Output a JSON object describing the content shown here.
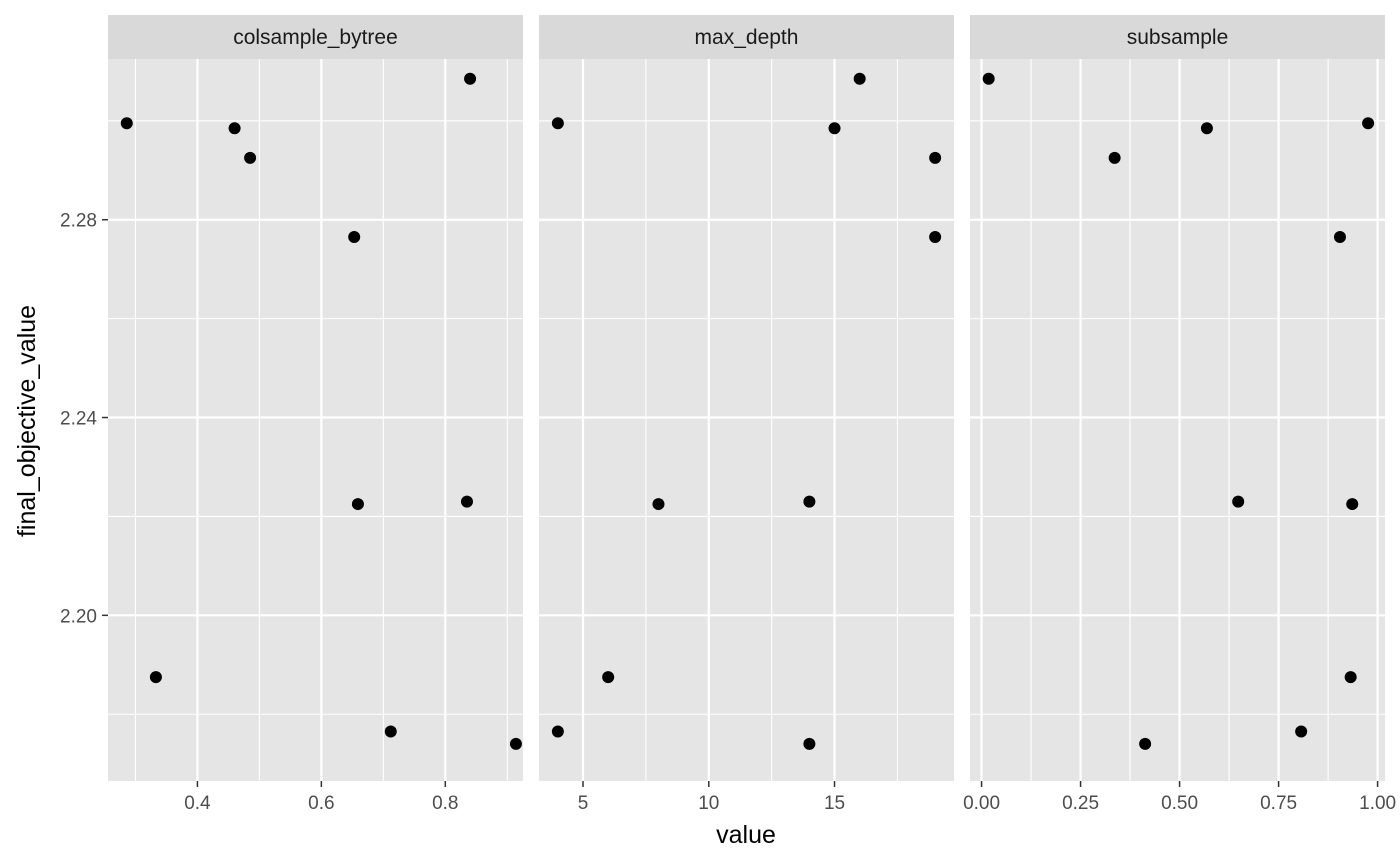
{
  "chart_data": {
    "type": "scatter",
    "facet_layout": "columns",
    "xlabel": "value",
    "ylabel": "final_objective_value",
    "y_range": [
      2.1665,
      2.3125
    ],
    "y_ticks": [
      2.2,
      2.24,
      2.28
    ],
    "y_tick_labels": [
      "2.20",
      "2.24",
      "2.28"
    ],
    "y_minor_ticks": [
      2.18,
      2.22,
      2.26,
      2.3
    ],
    "grid": true,
    "colors": {
      "panel_background": "#e5e5e5",
      "strip_background": "#d9d9d9",
      "gridline": "#ffffff",
      "point": "#000000"
    },
    "panels": [
      {
        "title": "colsample_bytree",
        "x_range": [
          0.2557,
          0.9254
        ],
        "x_ticks": [
          0.4,
          0.6,
          0.8
        ],
        "x_tick_labels": [
          "0.4",
          "0.6",
          "0.8"
        ],
        "x_minor_ticks": [
          0.3,
          0.5,
          0.7,
          0.9
        ],
        "points": [
          {
            "x": 0.286,
            "y": 2.2995
          },
          {
            "x": 0.333,
            "y": 2.1875
          },
          {
            "x": 0.46,
            "y": 2.2985
          },
          {
            "x": 0.485,
            "y": 2.2925
          },
          {
            "x": 0.653,
            "y": 2.2765
          },
          {
            "x": 0.659,
            "y": 2.2225
          },
          {
            "x": 0.712,
            "y": 2.1765
          },
          {
            "x": 0.835,
            "y": 2.223
          },
          {
            "x": 0.84,
            "y": 2.3085
          },
          {
            "x": 0.914,
            "y": 2.174
          }
        ]
      },
      {
        "title": "max_depth",
        "x_range": [
          3.25,
          19.75
        ],
        "x_ticks": [
          5,
          10,
          15
        ],
        "x_tick_labels": [
          "5",
          "10",
          "15"
        ],
        "x_minor_ticks": [
          7.5,
          12.5,
          17.5
        ],
        "points": [
          {
            "x": 4,
            "y": 2.2995
          },
          {
            "x": 4,
            "y": 2.1765
          },
          {
            "x": 6,
            "y": 2.1875
          },
          {
            "x": 8,
            "y": 2.2225
          },
          {
            "x": 14,
            "y": 2.223
          },
          {
            "x": 14,
            "y": 2.174
          },
          {
            "x": 15,
            "y": 2.2985
          },
          {
            "x": 16,
            "y": 2.3085
          },
          {
            "x": 19,
            "y": 2.2925
          },
          {
            "x": 19,
            "y": 2.2765
          }
        ]
      },
      {
        "title": "subsample",
        "x_range": [
          -0.0292,
          1.0187
        ],
        "x_ticks": [
          0.0,
          0.25,
          0.5,
          0.75,
          1.0
        ],
        "x_tick_labels": [
          "0.00",
          "0.25",
          "0.50",
          "0.75",
          "1.00"
        ],
        "x_minor_ticks": [
          0.125,
          0.375,
          0.625,
          0.875
        ],
        "points": [
          {
            "x": 0.018,
            "y": 2.3085
          },
          {
            "x": 0.336,
            "y": 2.2925
          },
          {
            "x": 0.413,
            "y": 2.174
          },
          {
            "x": 0.569,
            "y": 2.2985
          },
          {
            "x": 0.648,
            "y": 2.223
          },
          {
            "x": 0.807,
            "y": 2.1765
          },
          {
            "x": 0.905,
            "y": 2.2765
          },
          {
            "x": 0.932,
            "y": 2.1875
          },
          {
            "x": 0.936,
            "y": 2.2225
          },
          {
            "x": 0.976,
            "y": 2.2995
          }
        ]
      }
    ]
  }
}
